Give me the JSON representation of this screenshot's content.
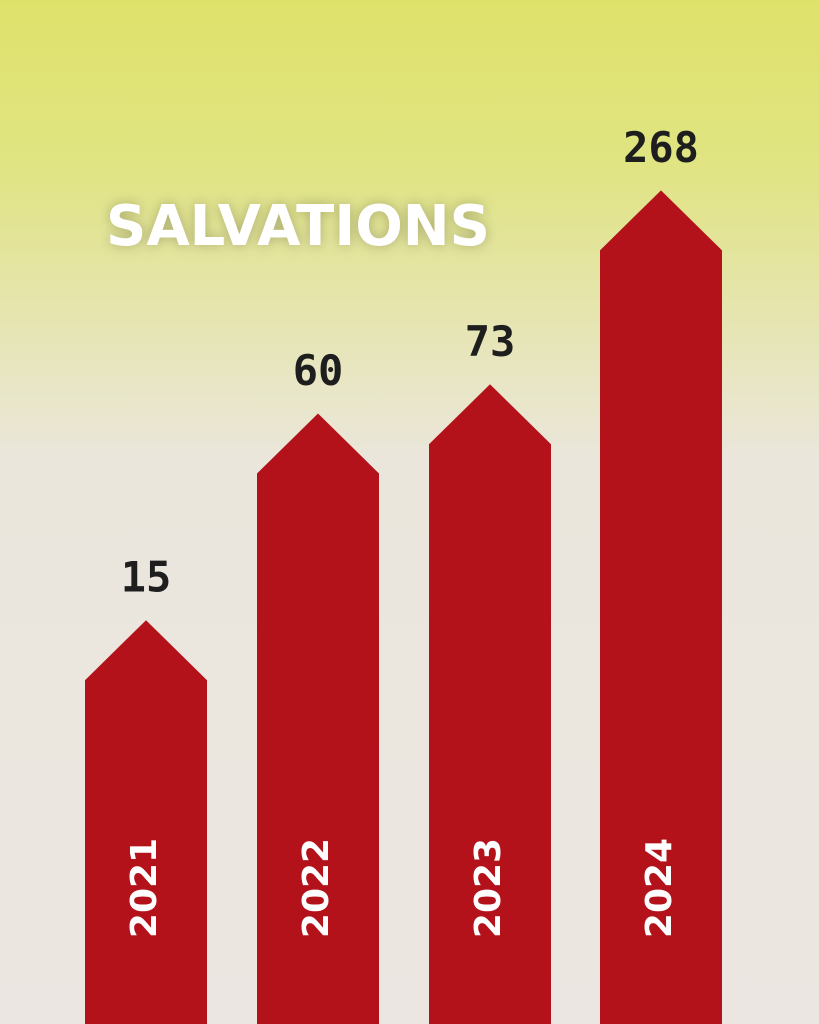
{
  "chart_data": {
    "type": "bar",
    "title": "SALVATIONS",
    "categories": [
      "2021",
      "2022",
      "2023",
      "2024"
    ],
    "values": [
      15,
      60,
      73,
      268
    ],
    "color": "#b3121a",
    "log_scale": true,
    "ylim": [
      1,
      1000
    ]
  }
}
